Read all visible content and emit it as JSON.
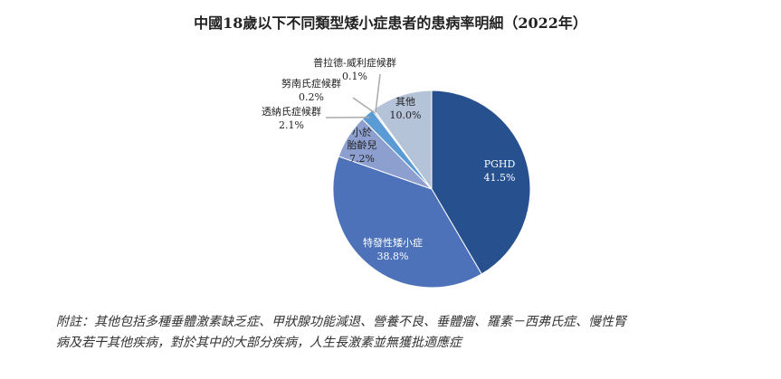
{
  "chart_data": {
    "type": "pie",
    "title": "中國18歲以下不同類型矮小症患者的患病率明細（2022年）",
    "slices": [
      {
        "label": "PGHD",
        "value": 41.5,
        "value_label": "41.5%",
        "color": "#27508f"
      },
      {
        "label": "特發性矮小症",
        "value": 38.8,
        "value_label": "38.8%",
        "color": "#4d72b9"
      },
      {
        "label": "小於胎齡兒",
        "value": 7.2,
        "value_label": "7.2%",
        "color": "#8c9fce"
      },
      {
        "label": "透納氏症候群",
        "value": 2.1,
        "value_label": "2.1%",
        "color": "#5b9bd5"
      },
      {
        "label": "努南氏症候群",
        "value": 0.2,
        "value_label": "0.2%",
        "color": "#3c6eb5"
      },
      {
        "label": "普拉德-威利症候群",
        "value": 0.1,
        "value_label": "0.1%",
        "color": "#7fa3d4"
      },
      {
        "label": "其他",
        "value": 10.0,
        "value_label": "10.0%",
        "color": "#b5c3d8"
      }
    ],
    "start": "top",
    "direction": "clockwise"
  },
  "footnote": {
    "line1": "附註：其他包括多種垂體激素缺乏症、甲狀腺功能減退、營養不良、垂體瘤、羅素－西弗氏症、慢性腎",
    "line2": "病及若干其他疾病，對於其中的大部分疾病，人生長激素並無獲批適應症"
  }
}
